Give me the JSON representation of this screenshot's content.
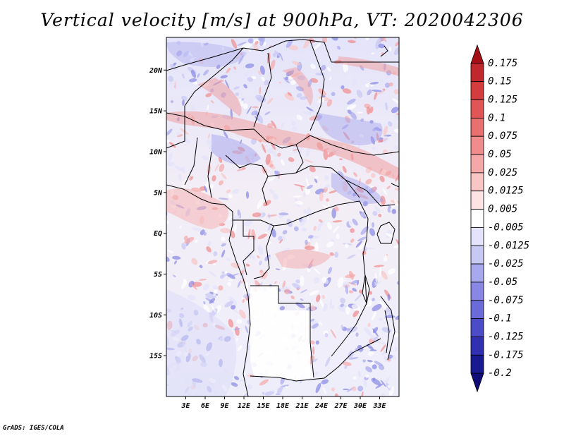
{
  "title": "Vertical velocity [m/s] at 900hPa, VT: 2020042306",
  "credit": "GrADS: IGES/COLA",
  "map": {
    "variable": "Vertical velocity",
    "units": "m/s",
    "level": "900hPa",
    "valid_time": "2020042306",
    "lon_range": [
      0,
      36
    ],
    "lat_range": [
      -20,
      24
    ],
    "x_ticks": [
      "3E",
      "6E",
      "9E",
      "12E",
      "15E",
      "18E",
      "21E",
      "24E",
      "27E",
      "30E",
      "33E"
    ],
    "x_tick_values": [
      3,
      6,
      9,
      12,
      15,
      18,
      21,
      24,
      27,
      30,
      33
    ],
    "y_ticks": [
      "20N",
      "15N",
      "10N",
      "5N",
      "EQ",
      "5S",
      "10S",
      "15S"
    ],
    "y_tick_values": [
      20,
      15,
      10,
      5,
      0,
      -5,
      -10,
      -15
    ]
  },
  "colorbar": {
    "labels": [
      "0.175",
      "0.15",
      "0.125",
      "0.1",
      "0.075",
      "0.05",
      "0.025",
      "0.0125",
      "0.005",
      "-0.005",
      "-0.0125",
      "-0.025",
      "-0.05",
      "-0.075",
      "-0.1",
      "-0.125",
      "-0.175",
      "-0.2"
    ],
    "colors": [
      "#a50f15",
      "#c0282d",
      "#d43d3d",
      "#e05656",
      "#e87070",
      "#f08c8c",
      "#f5a8a8",
      "#f9c6c6",
      "#fde3e3",
      "#ffffff",
      "#e3e3fb",
      "#c8c8f5",
      "#a8a8ee",
      "#8888e4",
      "#6a6ad8",
      "#4c4cc8",
      "#3030b0",
      "#1a1a90",
      "#100c78"
    ]
  }
}
